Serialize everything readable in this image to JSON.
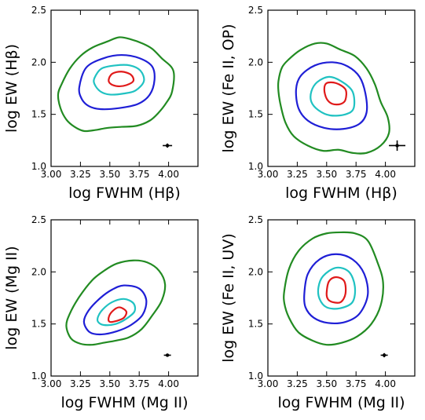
{
  "chart_data": [
    {
      "type": "contour",
      "xlabel": "log FWHM (Hβ)",
      "ylabel": "log EW (Hβ)",
      "xlim": [
        3.0,
        4.25
      ],
      "ylim": [
        1.0,
        2.5
      ],
      "xticks": [
        "3.00",
        "3.25",
        "3.50",
        "3.75",
        "4.00"
      ],
      "yticks": [
        "1.0",
        "1.5",
        "2.0",
        "2.5"
      ],
      "contours": [
        {
          "color": "#228B22",
          "points": [
            [
              3.06,
              1.69
            ],
            [
              3.09,
              1.79
            ],
            [
              3.16,
              1.94
            ],
            [
              3.25,
              2.06
            ],
            [
              3.35,
              2.14
            ],
            [
              3.48,
              2.2
            ],
            [
              3.58,
              2.24
            ],
            [
              3.68,
              2.22
            ],
            [
              3.78,
              2.18
            ],
            [
              3.86,
              2.13
            ],
            [
              3.94,
              2.04
            ],
            [
              4.04,
              1.92
            ],
            [
              4.03,
              1.72
            ],
            [
              3.98,
              1.61
            ],
            [
              3.91,
              1.51
            ],
            [
              3.84,
              1.44
            ],
            [
              3.73,
              1.39
            ],
            [
              3.6,
              1.38
            ],
            [
              3.48,
              1.37
            ],
            [
              3.38,
              1.35
            ],
            [
              3.28,
              1.34
            ],
            [
              3.2,
              1.38
            ],
            [
              3.13,
              1.45
            ],
            [
              3.08,
              1.56
            ],
            [
              3.06,
              1.69
            ]
          ]
        },
        {
          "color": "#1f1fd6",
          "points": [
            [
              3.24,
              1.76
            ],
            [
              3.3,
              1.95
            ],
            [
              3.45,
              2.04
            ],
            [
              3.6,
              2.07
            ],
            [
              3.75,
              2.04
            ],
            [
              3.86,
              1.96
            ],
            [
              3.88,
              1.83
            ],
            [
              3.84,
              1.69
            ],
            [
              3.74,
              1.6
            ],
            [
              3.58,
              1.56
            ],
            [
              3.42,
              1.55
            ],
            [
              3.32,
              1.58
            ],
            [
              3.26,
              1.65
            ],
            [
              3.24,
              1.76
            ]
          ]
        },
        {
          "color": "#20c2c2",
          "points": [
            [
              3.37,
              1.85
            ],
            [
              3.43,
              1.94
            ],
            [
              3.55,
              1.97
            ],
            [
              3.67,
              1.97
            ],
            [
              3.76,
              1.92
            ],
            [
              3.79,
              1.82
            ],
            [
              3.72,
              1.73
            ],
            [
              3.62,
              1.7
            ],
            [
              3.5,
              1.69
            ],
            [
              3.42,
              1.72
            ],
            [
              3.37,
              1.79
            ],
            [
              3.37,
              1.85
            ]
          ]
        },
        {
          "color": "#e01a1a",
          "points": [
            [
              3.49,
              1.83
            ],
            [
              3.52,
              1.89
            ],
            [
              3.6,
              1.91
            ],
            [
              3.68,
              1.88
            ],
            [
              3.7,
              1.82
            ],
            [
              3.64,
              1.78
            ],
            [
              3.57,
              1.77
            ],
            [
              3.51,
              1.79
            ],
            [
              3.49,
              1.83
            ]
          ]
        }
      ],
      "error_bar": {
        "x": 3.99,
        "y": 1.2,
        "xerr": 0.04,
        "yerr": 0.02
      }
    },
    {
      "type": "contour",
      "xlabel": "log FWHM (Hβ)",
      "ylabel": "log EW (Fe II, OP)",
      "xlim": [
        3.0,
        4.25
      ],
      "ylim": [
        1.0,
        2.5
      ],
      "xticks": [
        "3.00",
        "3.25",
        "3.50",
        "3.75",
        "4.00"
      ],
      "yticks": [
        "1.0",
        "1.5",
        "2.0",
        "2.5"
      ],
      "contours": [
        {
          "color": "#228B22",
          "points": [
            [
              3.09,
              1.82
            ],
            [
              3.12,
              1.95
            ],
            [
              3.18,
              2.03
            ],
            [
              3.28,
              2.12
            ],
            [
              3.4,
              2.18
            ],
            [
              3.5,
              2.18
            ],
            [
              3.62,
              2.12
            ],
            [
              3.74,
              2.06
            ],
            [
              3.84,
              1.94
            ],
            [
              3.91,
              1.79
            ],
            [
              3.96,
              1.62
            ],
            [
              4.02,
              1.47
            ],
            [
              4.03,
              1.32
            ],
            [
              3.96,
              1.2
            ],
            [
              3.84,
              1.13
            ],
            [
              3.72,
              1.13
            ],
            [
              3.6,
              1.16
            ],
            [
              3.47,
              1.15
            ],
            [
              3.34,
              1.2
            ],
            [
              3.22,
              1.29
            ],
            [
              3.15,
              1.42
            ],
            [
              3.11,
              1.58
            ],
            [
              3.09,
              1.72
            ],
            [
              3.09,
              1.82
            ]
          ]
        },
        {
          "color": "#1f1fd6",
          "points": [
            [
              3.24,
              1.74
            ],
            [
              3.28,
              1.87
            ],
            [
              3.4,
              1.97
            ],
            [
              3.55,
              2.0
            ],
            [
              3.68,
              1.96
            ],
            [
              3.78,
              1.86
            ],
            [
              3.83,
              1.7
            ],
            [
              3.84,
              1.52
            ],
            [
              3.78,
              1.41
            ],
            [
              3.64,
              1.36
            ],
            [
              3.48,
              1.37
            ],
            [
              3.34,
              1.44
            ],
            [
              3.26,
              1.56
            ],
            [
              3.24,
              1.74
            ]
          ]
        },
        {
          "color": "#20c2c2",
          "points": [
            [
              3.37,
              1.72
            ],
            [
              3.42,
              1.81
            ],
            [
              3.52,
              1.86
            ],
            [
              3.62,
              1.82
            ],
            [
              3.72,
              1.72
            ],
            [
              3.73,
              1.56
            ],
            [
              3.66,
              1.5
            ],
            [
              3.53,
              1.49
            ],
            [
              3.43,
              1.54
            ],
            [
              3.37,
              1.62
            ],
            [
              3.37,
              1.72
            ]
          ]
        },
        {
          "color": "#e01a1a",
          "points": [
            [
              3.48,
              1.74
            ],
            [
              3.5,
              1.8
            ],
            [
              3.58,
              1.8
            ],
            [
              3.66,
              1.74
            ],
            [
              3.66,
              1.64
            ],
            [
              3.62,
              1.6
            ],
            [
              3.55,
              1.6
            ],
            [
              3.5,
              1.65
            ],
            [
              3.48,
              1.74
            ]
          ]
        }
      ],
      "error_bar": {
        "x": 4.1,
        "y": 1.2,
        "xerr": 0.07,
        "yerr": 0.05
      }
    },
    {
      "type": "contour",
      "xlabel": "log FWHM (Mg II)",
      "ylabel": "log EW (Mg II)",
      "xlim": [
        3.0,
        4.25
      ],
      "ylim": [
        1.0,
        2.5
      ],
      "xticks": [
        "3.00",
        "3.25",
        "3.50",
        "3.75",
        "4.00"
      ],
      "yticks": [
        "1.0",
        "1.5",
        "2.0",
        "2.5"
      ],
      "contours": [
        {
          "color": "#228B22",
          "points": [
            [
              3.13,
              1.48
            ],
            [
              3.16,
              1.6
            ],
            [
              3.24,
              1.76
            ],
            [
              3.35,
              1.92
            ],
            [
              3.45,
              2.01
            ],
            [
              3.56,
              2.08
            ],
            [
              3.7,
              2.11
            ],
            [
              3.82,
              2.09
            ],
            [
              3.92,
              2.01
            ],
            [
              3.97,
              1.88
            ],
            [
              3.94,
              1.72
            ],
            [
              3.86,
              1.58
            ],
            [
              3.77,
              1.45
            ],
            [
              3.66,
              1.37
            ],
            [
              3.55,
              1.34
            ],
            [
              3.45,
              1.32
            ],
            [
              3.35,
              1.3
            ],
            [
              3.25,
              1.31
            ],
            [
              3.17,
              1.36
            ],
            [
              3.13,
              1.48
            ]
          ]
        },
        {
          "color": "#1f1fd6",
          "points": [
            [
              3.28,
              1.52
            ],
            [
              3.32,
              1.63
            ],
            [
              3.42,
              1.75
            ],
            [
              3.52,
              1.83
            ],
            [
              3.62,
              1.87
            ],
            [
              3.75,
              1.84
            ],
            [
              3.81,
              1.73
            ],
            [
              3.78,
              1.59
            ],
            [
              3.68,
              1.49
            ],
            [
              3.56,
              1.43
            ],
            [
              3.43,
              1.4
            ],
            [
              3.33,
              1.42
            ],
            [
              3.28,
              1.52
            ]
          ]
        },
        {
          "color": "#20c2c2",
          "points": [
            [
              3.4,
              1.57
            ],
            [
              3.44,
              1.64
            ],
            [
              3.52,
              1.71
            ],
            [
              3.62,
              1.74
            ],
            [
              3.7,
              1.7
            ],
            [
              3.71,
              1.62
            ],
            [
              3.64,
              1.55
            ],
            [
              3.55,
              1.5
            ],
            [
              3.45,
              1.49
            ],
            [
              3.4,
              1.52
            ],
            [
              3.4,
              1.57
            ]
          ]
        },
        {
          "color": "#e01a1a",
          "points": [
            [
              3.49,
              1.56
            ],
            [
              3.52,
              1.62
            ],
            [
              3.58,
              1.66
            ],
            [
              3.64,
              1.62
            ],
            [
              3.62,
              1.56
            ],
            [
              3.56,
              1.53
            ],
            [
              3.5,
              1.52
            ],
            [
              3.49,
              1.56
            ]
          ]
        }
      ],
      "error_bar": {
        "x": 3.99,
        "y": 1.2,
        "xerr": 0.03,
        "yerr": 0.015
      }
    },
    {
      "type": "contour",
      "xlabel": "log FWHM (Mg II)",
      "ylabel": "log EW (Fe II,  UV)",
      "xlim": [
        3.0,
        4.25
      ],
      "ylim": [
        1.0,
        2.5
      ],
      "xticks": [
        "3.00",
        "3.25",
        "3.50",
        "3.75",
        "4.00"
      ],
      "yticks": [
        "1.0",
        "1.5",
        "2.0",
        "2.5"
      ],
      "contours": [
        {
          "color": "#228B22",
          "points": [
            [
              3.14,
              1.82
            ],
            [
              3.18,
              2.03
            ],
            [
              3.26,
              2.2
            ],
            [
              3.38,
              2.32
            ],
            [
              3.5,
              2.37
            ],
            [
              3.62,
              2.38
            ],
            [
              3.74,
              2.37
            ],
            [
              3.85,
              2.3
            ],
            [
              3.93,
              2.1
            ],
            [
              3.98,
              1.9
            ],
            [
              3.96,
              1.68
            ],
            [
              3.88,
              1.5
            ],
            [
              3.76,
              1.38
            ],
            [
              3.63,
              1.32
            ],
            [
              3.5,
              1.3
            ],
            [
              3.38,
              1.34
            ],
            [
              3.26,
              1.42
            ],
            [
              3.18,
              1.56
            ],
            [
              3.14,
              1.7
            ],
            [
              3.14,
              1.82
            ]
          ]
        },
        {
          "color": "#1f1fd6",
          "points": [
            [
              3.31,
              1.79
            ],
            [
              3.34,
              1.98
            ],
            [
              3.44,
              2.12
            ],
            [
              3.58,
              2.17
            ],
            [
              3.72,
              2.12
            ],
            [
              3.82,
              1.98
            ],
            [
              3.85,
              1.78
            ],
            [
              3.78,
              1.6
            ],
            [
              3.66,
              1.52
            ],
            [
              3.51,
              1.51
            ],
            [
              3.39,
              1.56
            ],
            [
              3.32,
              1.66
            ],
            [
              3.31,
              1.79
            ]
          ]
        },
        {
          "color": "#20c2c2",
          "points": [
            [
              3.43,
              1.85
            ],
            [
              3.47,
              1.96
            ],
            [
              3.58,
              2.04
            ],
            [
              3.69,
              2.0
            ],
            [
              3.74,
              1.86
            ],
            [
              3.72,
              1.71
            ],
            [
              3.61,
              1.65
            ],
            [
              3.5,
              1.66
            ],
            [
              3.44,
              1.74
            ],
            [
              3.43,
              1.85
            ]
          ]
        },
        {
          "color": "#e01a1a",
          "points": [
            [
              3.5,
              1.8
            ],
            [
              3.52,
              1.91
            ],
            [
              3.58,
              1.95
            ],
            [
              3.65,
              1.91
            ],
            [
              3.66,
              1.79
            ],
            [
              3.62,
              1.71
            ],
            [
              3.55,
              1.71
            ],
            [
              3.51,
              1.74
            ],
            [
              3.5,
              1.8
            ]
          ]
        }
      ],
      "error_bar": {
        "x": 3.99,
        "y": 1.2,
        "xerr": 0.03,
        "yerr": 0.02
      }
    }
  ]
}
